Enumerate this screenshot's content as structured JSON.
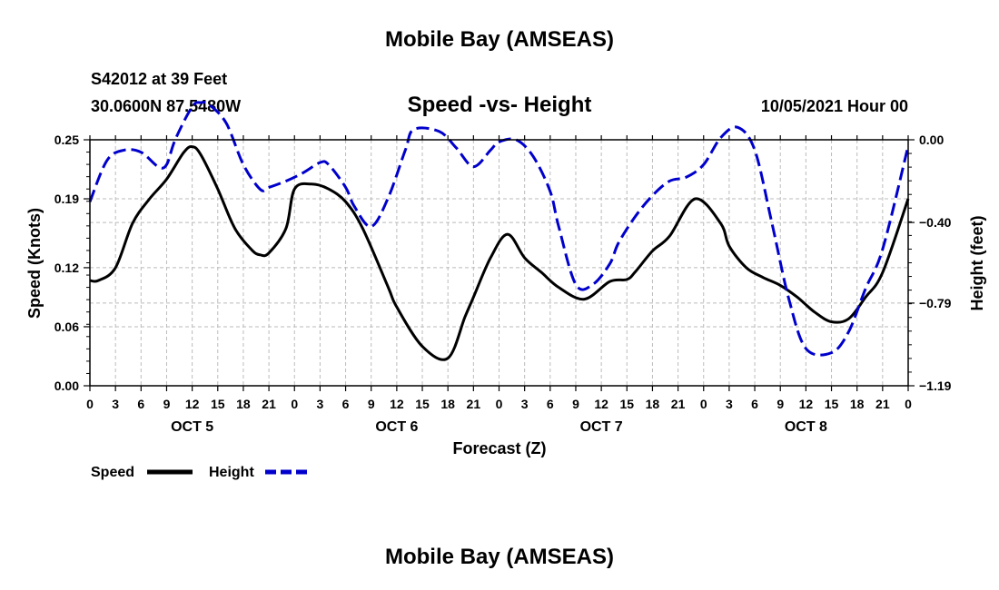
{
  "header": {
    "title": "Mobile Bay (AMSEAS)",
    "station": "S42012 at 39 Feet",
    "coords": "30.0600N  87.5480W",
    "subtitle": "Speed -vs- Height",
    "datetime": "10/05/2021 Hour 00"
  },
  "footer": {
    "title": "Mobile Bay (AMSEAS)"
  },
  "chart_data": {
    "type": "line",
    "xlabel": "Forecast (Z)",
    "ylabel_left": "Speed (Knots)",
    "ylabel_right": "Height (feet)",
    "ylim_left": [
      0,
      0.25
    ],
    "ylim_right": [
      -1.19,
      0.0
    ],
    "xlim_hours": [
      0,
      96
    ],
    "left_ticks": [
      "0.00",
      "0.06",
      "0.12",
      "0.19",
      "0.25"
    ],
    "right_ticks": [
      "−1.19",
      "−0.79",
      "−0.40",
      "0.00"
    ],
    "x_tick_labels": [
      "0",
      "3",
      "6",
      "9",
      "12",
      "15",
      "18",
      "21",
      "0",
      "3",
      "6",
      "9",
      "12",
      "15",
      "18",
      "21",
      "0",
      "3",
      "6",
      "9",
      "12",
      "15",
      "18",
      "21",
      "0",
      "3",
      "6",
      "9",
      "12",
      "15",
      "18",
      "21",
      "0"
    ],
    "day_labels": [
      "OCT 5",
      "OCT 6",
      "OCT 7",
      "OCT 8"
    ],
    "grid": true,
    "legend": "bottom-left",
    "series": [
      {
        "name": "Speed",
        "color": "#000000",
        "dash": "solid",
        "axis": "left",
        "x": [
          0,
          1,
          3,
          5,
          7,
          9,
          11,
          12,
          13,
          15,
          17,
          19,
          20,
          21,
          23,
          24,
          26,
          28,
          30,
          32,
          35,
          36,
          39,
          42,
          44,
          45,
          47,
          49,
          51,
          53,
          55,
          58,
          61,
          63,
          64,
          66,
          68,
          71,
          74,
          75,
          77,
          79,
          81,
          83,
          85,
          87,
          89,
          91,
          93,
          96
        ],
        "y": [
          0.107,
          0.107,
          0.12,
          0.165,
          0.19,
          0.21,
          0.237,
          0.243,
          0.235,
          0.2,
          0.16,
          0.138,
          0.133,
          0.135,
          0.16,
          0.2,
          0.205,
          0.2,
          0.187,
          0.16,
          0.1,
          0.08,
          0.04,
          0.028,
          0.07,
          0.09,
          0.13,
          0.154,
          0.13,
          0.115,
          0.1,
          0.088,
          0.106,
          0.108,
          0.116,
          0.137,
          0.152,
          0.19,
          0.165,
          0.142,
          0.12,
          0.11,
          0.102,
          0.09,
          0.075,
          0.065,
          0.068,
          0.09,
          0.115,
          0.19
        ]
      },
      {
        "name": "Height",
        "color": "#0000cc",
        "dash": "dashed",
        "axis": "right",
        "x": [
          0,
          2,
          4,
          6,
          8,
          9,
          10,
          12,
          13,
          14,
          16,
          18,
          20,
          21,
          23,
          25,
          27,
          28,
          30,
          31,
          33,
          35,
          37,
          38,
          41,
          43,
          45,
          47,
          48,
          50,
          52,
          54,
          55,
          57,
          59,
          61,
          62,
          64,
          66,
          68,
          70,
          72,
          74,
          76,
          78,
          80,
          82,
          84,
          87,
          89,
          91,
          93,
          96
        ],
        "y": [
          -0.3,
          -0.1,
          -0.05,
          -0.06,
          -0.13,
          -0.12,
          0.0,
          0.16,
          0.18,
          0.17,
          0.08,
          -0.12,
          -0.24,
          -0.23,
          -0.2,
          -0.16,
          -0.11,
          -0.12,
          -0.23,
          -0.32,
          -0.42,
          -0.28,
          -0.05,
          0.05,
          0.04,
          -0.04,
          -0.13,
          -0.05,
          -0.01,
          0.0,
          -0.08,
          -0.25,
          -0.42,
          -0.7,
          -0.7,
          -0.6,
          -0.5,
          -0.37,
          -0.27,
          -0.2,
          -0.18,
          -0.12,
          0.01,
          0.06,
          -0.05,
          -0.4,
          -0.77,
          -1.01,
          -1.03,
          -0.93,
          -0.72,
          -0.53,
          -0.03
        ]
      }
    ]
  }
}
